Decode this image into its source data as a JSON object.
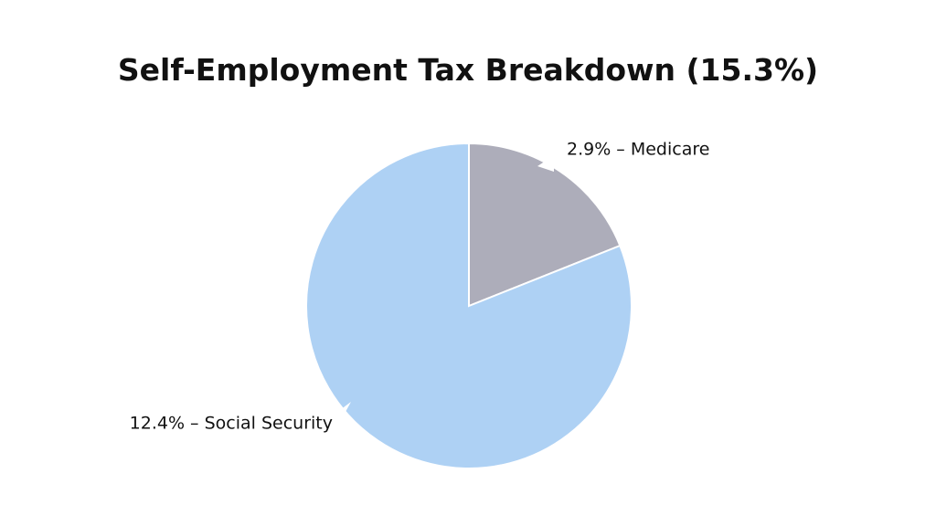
{
  "chart_data": {
    "type": "pie",
    "title": "Self-Employment Tax Breakdown (15.3%)",
    "values": [
      2.9,
      12.4
    ],
    "value_labels": [
      "2.9% – Medicare",
      "12.4% – Social Security"
    ],
    "colors": [
      "#adadba",
      "#aed1f4"
    ]
  }
}
